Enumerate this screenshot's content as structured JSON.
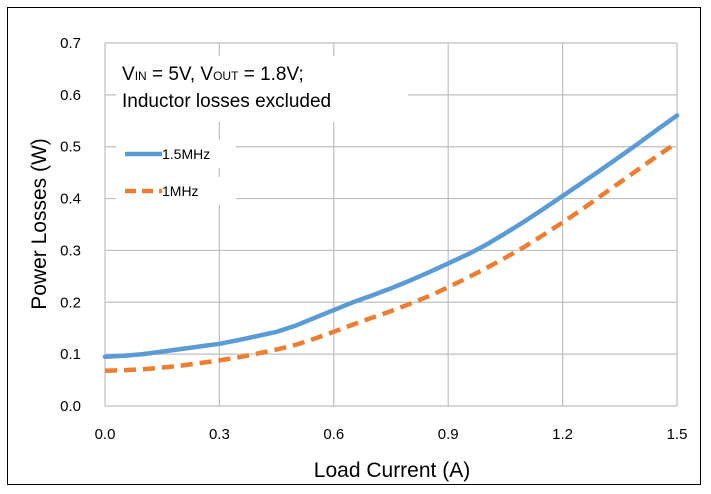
{
  "chart_data": {
    "type": "line",
    "title": "",
    "xlabel": "Load Current (A)",
    "ylabel": "Power Losses (W)",
    "xlim": [
      0,
      1.5
    ],
    "ylim": [
      0,
      0.7
    ],
    "xticks": [
      "0.0",
      "0.3",
      "0.6",
      "0.9",
      "1.2",
      "1.5"
    ],
    "yticks": [
      "0.0",
      "0.1",
      "0.2",
      "0.3",
      "0.4",
      "0.5",
      "0.6",
      "0.7"
    ],
    "grid": true,
    "legend_position": "top-left",
    "annotation": {
      "line1": [
        {
          "text": "V",
          "sub": false
        },
        {
          "text": "IN",
          "sub": true
        },
        {
          "text": " = 5V, V",
          "sub": false
        },
        {
          "text": "OUT",
          "sub": true
        },
        {
          "text": " = 1.8V;",
          "sub": false
        }
      ],
      "line2": "Inductor losses excluded"
    },
    "series": [
      {
        "name": "1.5MHz",
        "color": "#5b9bd5",
        "style": "solid",
        "x": [
          0,
          0.05,
          0.1,
          0.15,
          0.2,
          0.25,
          0.3,
          0.35,
          0.4,
          0.45,
          0.5,
          0.55,
          0.6,
          0.65,
          0.7,
          0.75,
          0.8,
          0.85,
          0.9,
          0.95,
          1.0,
          1.05,
          1.1,
          1.15,
          1.2,
          1.25,
          1.3,
          1.35,
          1.4,
          1.45,
          1.5
        ],
        "values": [
          0.095,
          0.097,
          0.1,
          0.105,
          0.11,
          0.115,
          0.12,
          0.127,
          0.135,
          0.143,
          0.155,
          0.17,
          0.185,
          0.2,
          0.213,
          0.227,
          0.242,
          0.258,
          0.275,
          0.292,
          0.311,
          0.333,
          0.356,
          0.38,
          0.405,
          0.43,
          0.455,
          0.481,
          0.507,
          0.534,
          0.56
        ]
      },
      {
        "name": "1MHz",
        "color": "#ed7d31",
        "style": "dashed",
        "x": [
          0,
          0.05,
          0.1,
          0.15,
          0.2,
          0.25,
          0.3,
          0.35,
          0.4,
          0.45,
          0.5,
          0.55,
          0.6,
          0.65,
          0.7,
          0.75,
          0.8,
          0.85,
          0.9,
          0.95,
          1.0,
          1.05,
          1.1,
          1.15,
          1.2,
          1.25,
          1.3,
          1.35,
          1.4,
          1.45,
          1.5
        ],
        "values": [
          0.068,
          0.069,
          0.071,
          0.074,
          0.078,
          0.083,
          0.088,
          0.094,
          0.101,
          0.109,
          0.118,
          0.13,
          0.143,
          0.157,
          0.17,
          0.183,
          0.197,
          0.212,
          0.229,
          0.247,
          0.266,
          0.286,
          0.307,
          0.33,
          0.354,
          0.379,
          0.405,
          0.431,
          0.457,
          0.483,
          0.508
        ]
      }
    ]
  }
}
